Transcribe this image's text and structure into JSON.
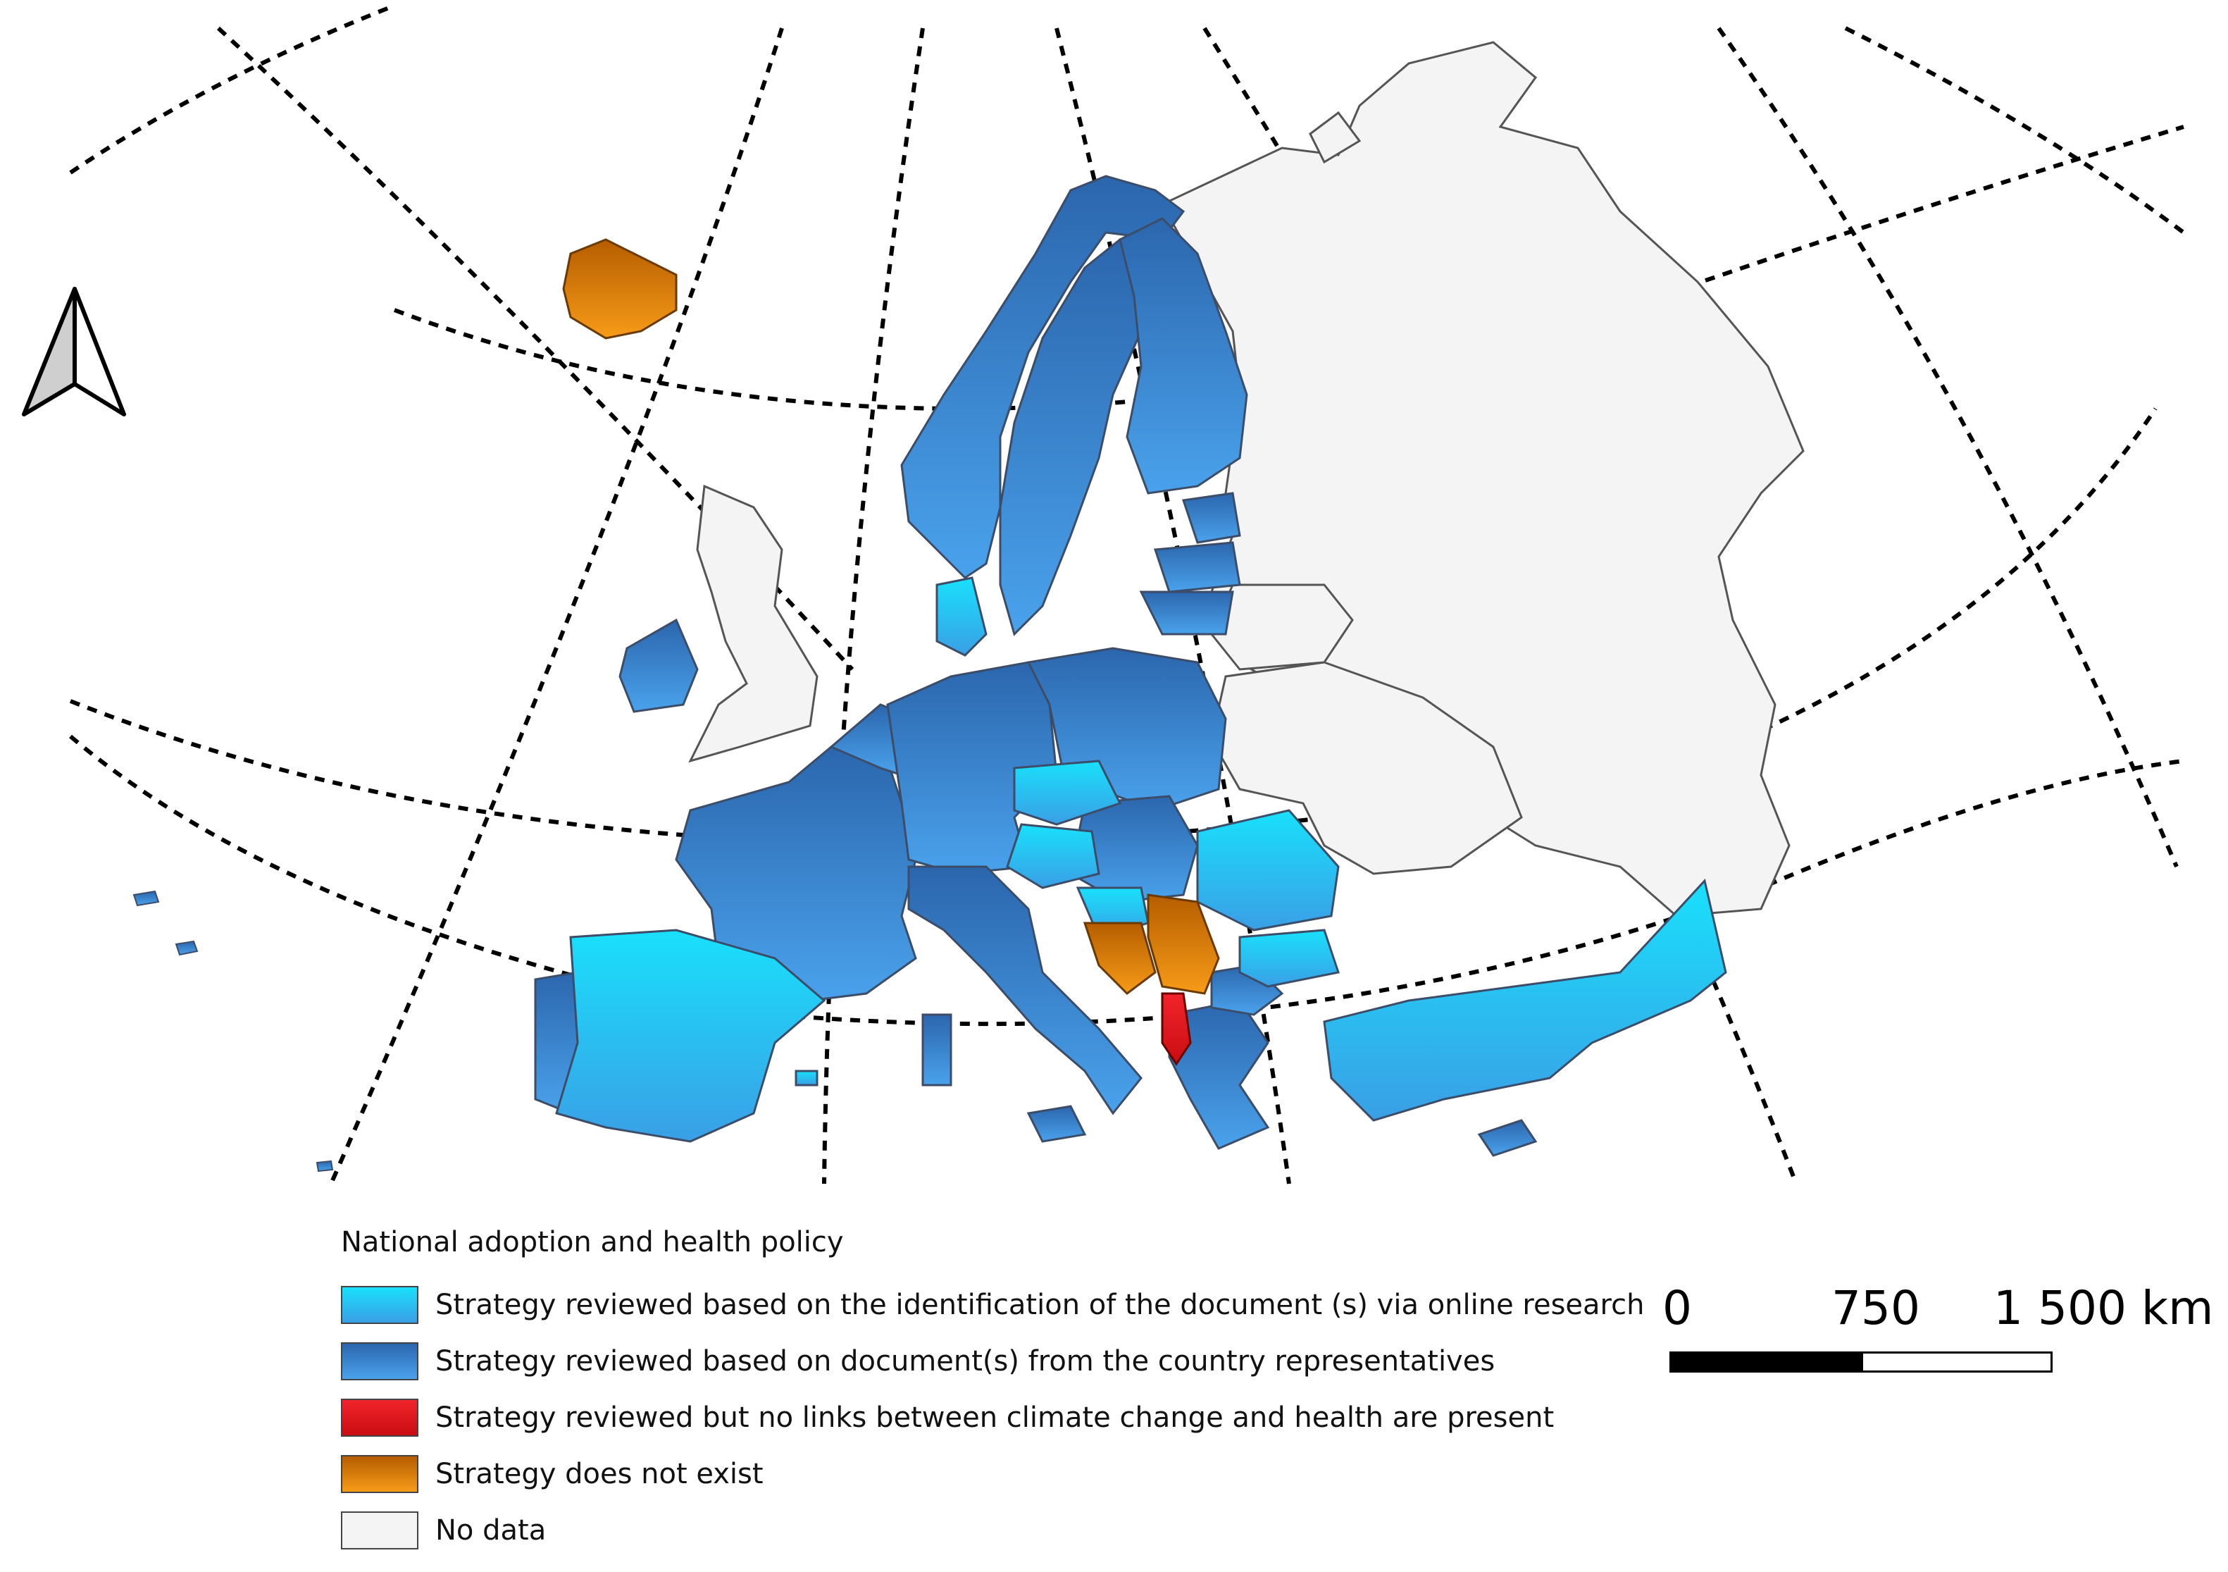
{
  "colors": {
    "online": "#1cc6f3",
    "online_dark": "#3aa3e6",
    "rep": "#2f6fb5",
    "rep_light": "#4a9ce6",
    "red": "#e3141b",
    "orange": "#e88410",
    "orange_dark": "#b35e00",
    "nodata": "#f4f4f4",
    "border": "#555555",
    "grid": "#000000"
  },
  "north_arrow": {
    "icon": "north-arrow-icon"
  },
  "legend": {
    "title": "National adoption and health policy",
    "items": [
      {
        "key": "online",
        "label": "Strategy reviewed based on the identification of the document (s) via online research"
      },
      {
        "key": "rep",
        "label": "Strategy reviewed based on document(s) from the country representatives"
      },
      {
        "key": "red",
        "label": "Strategy reviewed but no links between climate change and health are present"
      },
      {
        "key": "orange",
        "label": "Strategy does not exist"
      },
      {
        "key": "nodata",
        "label": "No data"
      }
    ]
  },
  "scale_bar": {
    "labels": [
      "0",
      "750",
      "1 500 km"
    ]
  }
}
